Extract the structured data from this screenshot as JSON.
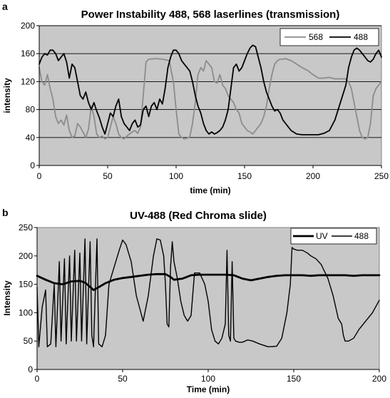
{
  "figure": {
    "panel_a_letter": "a",
    "panel_b_letter": "b"
  },
  "chart_data": [
    {
      "type": "line",
      "title": "Power Instability 488, 568 laserlines (transmission)",
      "xlabel": "time (min)",
      "ylabel": "intensity",
      "xlim": [
        0,
        250
      ],
      "ylim": [
        0,
        200
      ],
      "xticks": [
        0,
        50,
        100,
        150,
        200,
        250
      ],
      "yticks": [
        0,
        40,
        80,
        120,
        160,
        200
      ],
      "grid": "horizontal",
      "plot_background": "#c8c8c8",
      "legend_position": "top-right",
      "series": [
        {
          "name": "568",
          "color": "#8c8c8c",
          "width": 1.8,
          "x": [
            0,
            2,
            4,
            6,
            8,
            10,
            12,
            14,
            16,
            18,
            20,
            22,
            24,
            26,
            28,
            30,
            32,
            34,
            36,
            38,
            40,
            42,
            44,
            46,
            48,
            50,
            52,
            54,
            56,
            58,
            60,
            62,
            64,
            66,
            68,
            70,
            72,
            74,
            76,
            78,
            80,
            85,
            90,
            95,
            98,
            100,
            102,
            104,
            106,
            108,
            110,
            112,
            114,
            116,
            118,
            120,
            122,
            124,
            126,
            128,
            130,
            132,
            134,
            136,
            138,
            140,
            142,
            144,
            146,
            148,
            150,
            152,
            154,
            156,
            158,
            160,
            162,
            164,
            166,
            168,
            170,
            172,
            174,
            176,
            178,
            180,
            184,
            188,
            192,
            196,
            200,
            204,
            208,
            212,
            216,
            220,
            224,
            226,
            228,
            230,
            232,
            234,
            236,
            238,
            240,
            242,
            244,
            246,
            248,
            250
          ],
          "y": [
            140,
            120,
            115,
            130,
            110,
            95,
            70,
            60,
            65,
            58,
            72,
            50,
            40,
            42,
            60,
            55,
            48,
            40,
            52,
            85,
            70,
            45,
            40,
            42,
            38,
            40,
            55,
            70,
            60,
            45,
            40,
            38,
            42,
            45,
            48,
            50,
            46,
            55,
            100,
            148,
            152,
            153,
            152,
            150,
            120,
            80,
            45,
            40,
            38,
            39,
            41,
            60,
            90,
            130,
            140,
            135,
            150,
            145,
            140,
            120,
            118,
            130,
            115,
            110,
            100,
            95,
            90,
            80,
            75,
            60,
            55,
            50,
            48,
            45,
            50,
            55,
            60,
            70,
            85,
            110,
            130,
            145,
            150,
            152,
            152,
            153,
            150,
            145,
            140,
            136,
            130,
            125,
            125,
            126,
            124,
            124,
            124,
            120,
            110,
            90,
            70,
            50,
            40,
            38,
            40,
            60,
            100,
            110,
            115,
            120
          ]
        },
        {
          "name": "488",
          "color": "#000000",
          "width": 1.8,
          "x": [
            0,
            2,
            4,
            6,
            8,
            10,
            12,
            14,
            16,
            18,
            20,
            22,
            24,
            26,
            28,
            30,
            32,
            34,
            36,
            38,
            40,
            42,
            44,
            46,
            48,
            50,
            52,
            54,
            56,
            58,
            60,
            62,
            64,
            66,
            68,
            70,
            72,
            74,
            76,
            78,
            80,
            82,
            84,
            86,
            88,
            90,
            92,
            94,
            96,
            98,
            100,
            102,
            104,
            106,
            108,
            110,
            112,
            114,
            116,
            118,
            120,
            122,
            124,
            126,
            128,
            130,
            132,
            134,
            136,
            138,
            140,
            142,
            144,
            146,
            148,
            150,
            152,
            154,
            156,
            158,
            160,
            162,
            164,
            166,
            168,
            170,
            172,
            174,
            176,
            178,
            180,
            184,
            188,
            192,
            196,
            200,
            204,
            208,
            212,
            216,
            220,
            224,
            226,
            228,
            230,
            232,
            234,
            236,
            238,
            240,
            242,
            244,
            246,
            248,
            250
          ],
          "y": [
            145,
            155,
            160,
            158,
            165,
            165,
            160,
            150,
            155,
            160,
            148,
            125,
            145,
            140,
            120,
            100,
            95,
            105,
            90,
            80,
            90,
            78,
            68,
            55,
            45,
            60,
            75,
            70,
            85,
            95,
            70,
            60,
            55,
            50,
            60,
            65,
            55,
            58,
            80,
            85,
            70,
            85,
            90,
            80,
            95,
            88,
            110,
            140,
            155,
            165,
            165,
            160,
            150,
            145,
            140,
            135,
            120,
            100,
            85,
            75,
            60,
            50,
            45,
            48,
            45,
            47,
            50,
            55,
            65,
            80,
            110,
            140,
            145,
            135,
            140,
            150,
            160,
            168,
            172,
            170,
            155,
            140,
            120,
            105,
            95,
            85,
            78,
            80,
            75,
            65,
            60,
            50,
            45,
            44,
            44,
            44,
            44,
            46,
            50,
            65,
            90,
            115,
            140,
            155,
            165,
            168,
            165,
            160,
            155,
            150,
            148,
            152,
            160,
            165,
            155
          ]
        }
      ]
    },
    {
      "type": "line",
      "title": "UV-488 (Red Chroma slide)",
      "xlabel": "Time (min)",
      "ylabel": "Intensity",
      "xlim": [
        0,
        200
      ],
      "ylim": [
        0,
        250
      ],
      "xticks": [
        0,
        50,
        100,
        150,
        200
      ],
      "yticks": [
        0,
        50,
        100,
        150,
        200,
        250
      ],
      "grid": "none",
      "plot_background": "#c8c8c8",
      "legend_position": "top-right",
      "series": [
        {
          "name": "UV",
          "color": "#000000",
          "width": 2.8,
          "x": [
            0,
            5,
            10,
            15,
            20,
            25,
            28,
            30,
            33,
            36,
            40,
            45,
            50,
            55,
            60,
            65,
            70,
            75,
            78,
            80,
            85,
            90,
            95,
            100,
            105,
            110,
            115,
            120,
            125,
            130,
            135,
            140,
            145,
            150,
            155,
            160,
            165,
            170,
            175,
            180,
            185,
            190,
            195,
            200
          ],
          "y": [
            165,
            158,
            152,
            150,
            155,
            156,
            153,
            148,
            140,
            145,
            152,
            158,
            161,
            163,
            165,
            167,
            168,
            168,
            163,
            158,
            160,
            166,
            167,
            167,
            167,
            167,
            166,
            160,
            157,
            160,
            163,
            165,
            166,
            166,
            166,
            165,
            166,
            166,
            166,
            166,
            165,
            166,
            166,
            166
          ]
        },
        {
          "name": "488",
          "color": "#000000",
          "width": 1.4,
          "x": [
            0,
            1,
            3,
            5,
            6,
            8,
            10,
            11,
            13,
            14,
            16,
            17,
            19,
            20,
            22,
            23,
            25,
            26,
            28,
            29,
            31,
            32,
            33,
            35,
            36,
            38,
            40,
            42,
            45,
            48,
            50,
            52,
            55,
            58,
            62,
            65,
            68,
            70,
            72,
            74,
            75,
            76,
            77,
            78,
            79,
            80,
            82,
            84,
            86,
            88,
            90,
            92,
            95,
            98,
            100,
            102,
            104,
            106,
            108,
            110,
            111,
            112,
            113,
            114,
            115,
            116,
            118,
            120,
            123,
            126,
            130,
            135,
            140,
            143,
            146,
            148,
            149,
            150,
            152,
            155,
            158,
            160,
            163,
            166,
            170,
            173,
            176,
            178,
            179,
            180,
            182,
            185,
            188,
            192,
            196,
            200
          ],
          "y": [
            145,
            40,
            110,
            140,
            40,
            45,
            150,
            40,
            190,
            50,
            195,
            45,
            200,
            50,
            210,
            50,
            205,
            50,
            230,
            45,
            225,
            60,
            40,
            230,
            45,
            40,
            60,
            150,
            180,
            210,
            228,
            220,
            190,
            130,
            85,
            130,
            200,
            230,
            228,
            200,
            150,
            80,
            75,
            180,
            225,
            190,
            160,
            120,
            95,
            85,
            95,
            170,
            170,
            150,
            120,
            70,
            50,
            45,
            55,
            80,
            210,
            60,
            50,
            190,
            55,
            50,
            48,
            48,
            52,
            50,
            45,
            40,
            41,
            55,
            100,
            150,
            215,
            212,
            210,
            210,
            205,
            200,
            195,
            185,
            160,
            130,
            90,
            80,
            60,
            50,
            50,
            55,
            70,
            85,
            100,
            122
          ]
        }
      ]
    }
  ]
}
